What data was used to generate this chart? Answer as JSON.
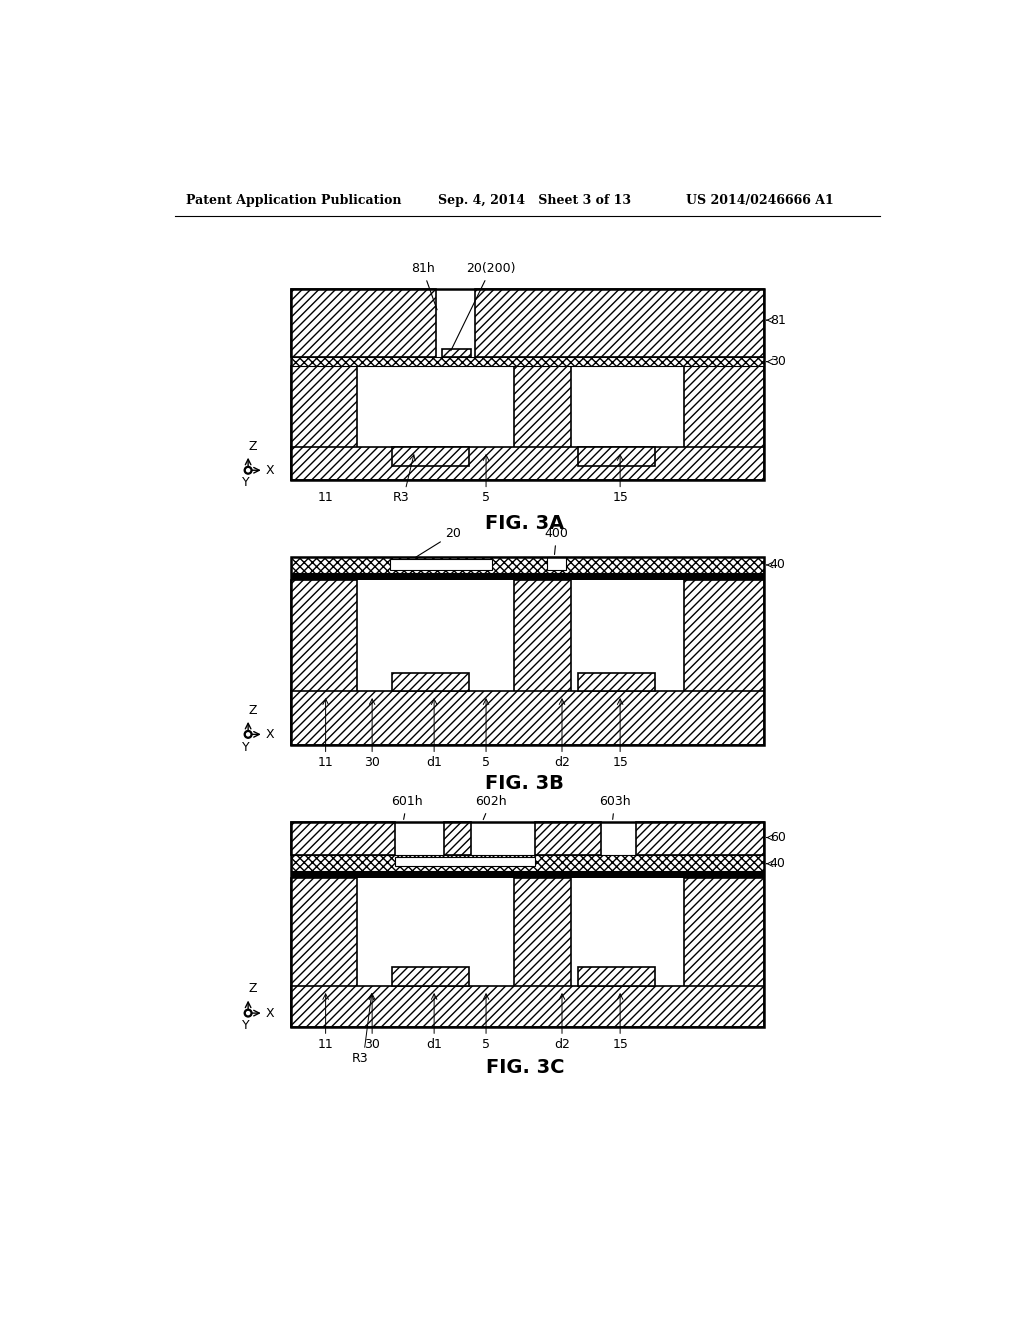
{
  "bg_color": "#ffffff",
  "header_left": "Patent Application Publication",
  "header_mid": "Sep. 4, 2014   Sheet 3 of 13",
  "header_right": "US 2014/0246666 A1",
  "fig3a_label": "FIG. 3A",
  "fig3b_label": "FIG. 3B",
  "fig3c_label": "FIG. 3C",
  "label_fs": 9,
  "fig_label_fs": 14,
  "header_fs": 9
}
